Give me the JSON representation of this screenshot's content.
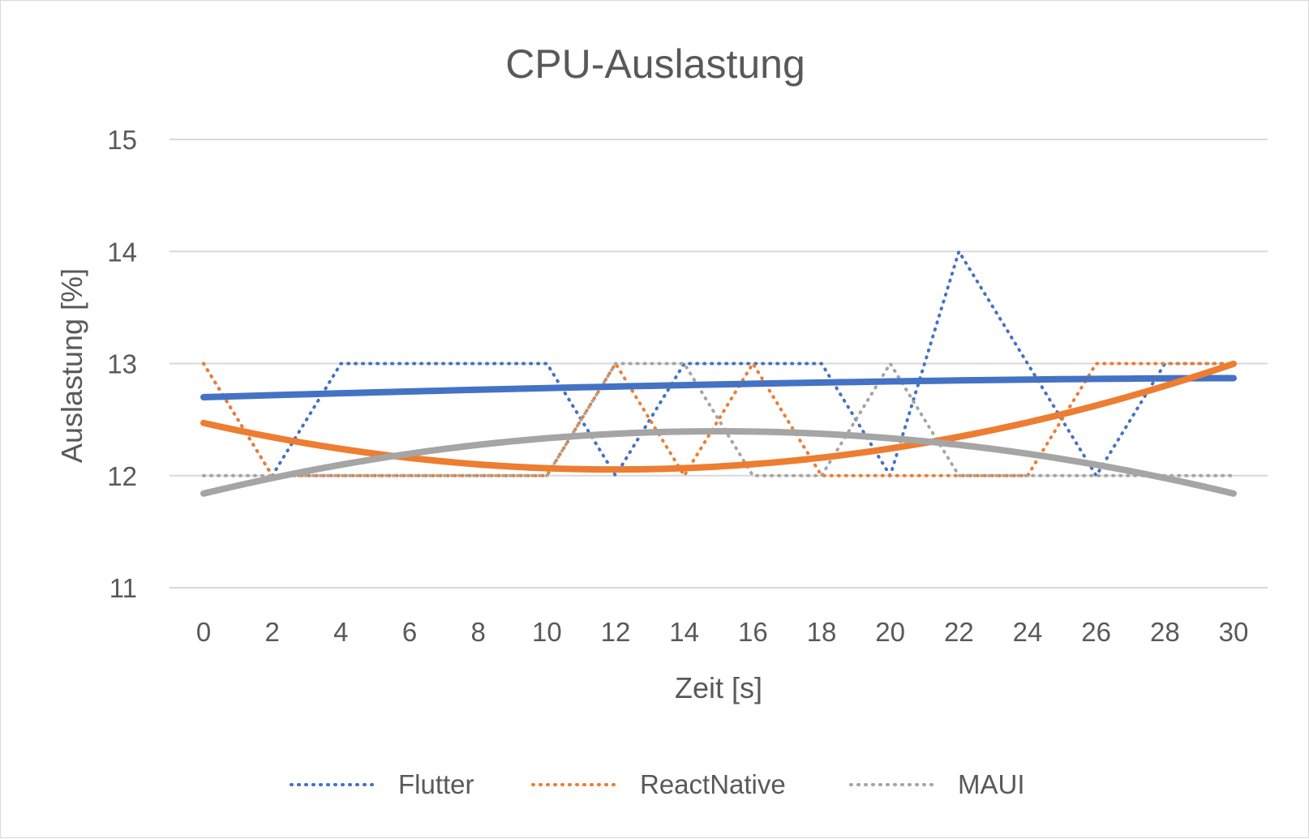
{
  "chart_data": {
    "type": "line",
    "title": "CPU-Auslastung",
    "xlabel": "Zeit [s]",
    "ylabel": "Auslastung [%]",
    "x": [
      0,
      1,
      2,
      3,
      4,
      5,
      6,
      7,
      8,
      9,
      10,
      11,
      12,
      13,
      14,
      15,
      16,
      17,
      18,
      19,
      20,
      21,
      22,
      23,
      24,
      25,
      26,
      27,
      28,
      29,
      30
    ],
    "x_ticks": [
      0,
      2,
      4,
      6,
      8,
      10,
      12,
      14,
      16,
      18,
      20,
      22,
      24,
      26,
      28,
      30
    ],
    "ylim": [
      11,
      15
    ],
    "y_ticks": [
      11,
      12,
      13,
      14,
      15
    ],
    "grid": true,
    "legend_position": "bottom",
    "series": [
      {
        "name": "Flutter",
        "color": "#4472c4",
        "style": "dotted",
        "values": [
          13,
          12.5,
          12,
          12.5,
          13,
          13,
          13,
          13,
          13,
          13,
          13,
          12.5,
          12,
          12.5,
          13,
          13,
          13,
          13,
          13,
          12.5,
          12,
          13,
          14,
          13.5,
          13,
          12.5,
          12,
          12.5,
          13,
          13,
          13
        ],
        "trend": {
          "type": "polynomial",
          "values": [
            12.7,
            12.87
          ],
          "shape": "linear"
        }
      },
      {
        "name": "ReactNative",
        "color": "#ed7d31",
        "style": "dotted",
        "values": [
          13,
          12.5,
          12,
          12,
          12,
          12,
          12,
          12,
          12,
          12,
          12,
          12.5,
          13,
          12.5,
          12,
          12.5,
          13,
          12.5,
          12,
          12,
          12,
          12,
          12,
          12,
          12,
          12.5,
          13,
          13,
          13,
          13,
          13
        ],
        "trend": {
          "type": "polynomial",
          "coefficients": [
            12.47,
            -0.0694,
            0.0029
          ]
        }
      },
      {
        "name": "MAUI",
        "color": "#a5a5a5",
        "style": "dotted",
        "values": [
          12,
          12,
          12,
          12,
          12,
          12,
          12,
          12,
          12,
          12,
          12,
          12.5,
          13,
          13,
          13,
          12.5,
          12,
          12,
          12,
          12.5,
          13,
          12.5,
          12,
          12,
          12,
          12,
          12,
          12,
          12,
          12,
          12
        ],
        "trend": {
          "type": "polynomial",
          "coefficients": [
            11.84,
            0.0741,
            -0.00247
          ]
        }
      }
    ]
  }
}
